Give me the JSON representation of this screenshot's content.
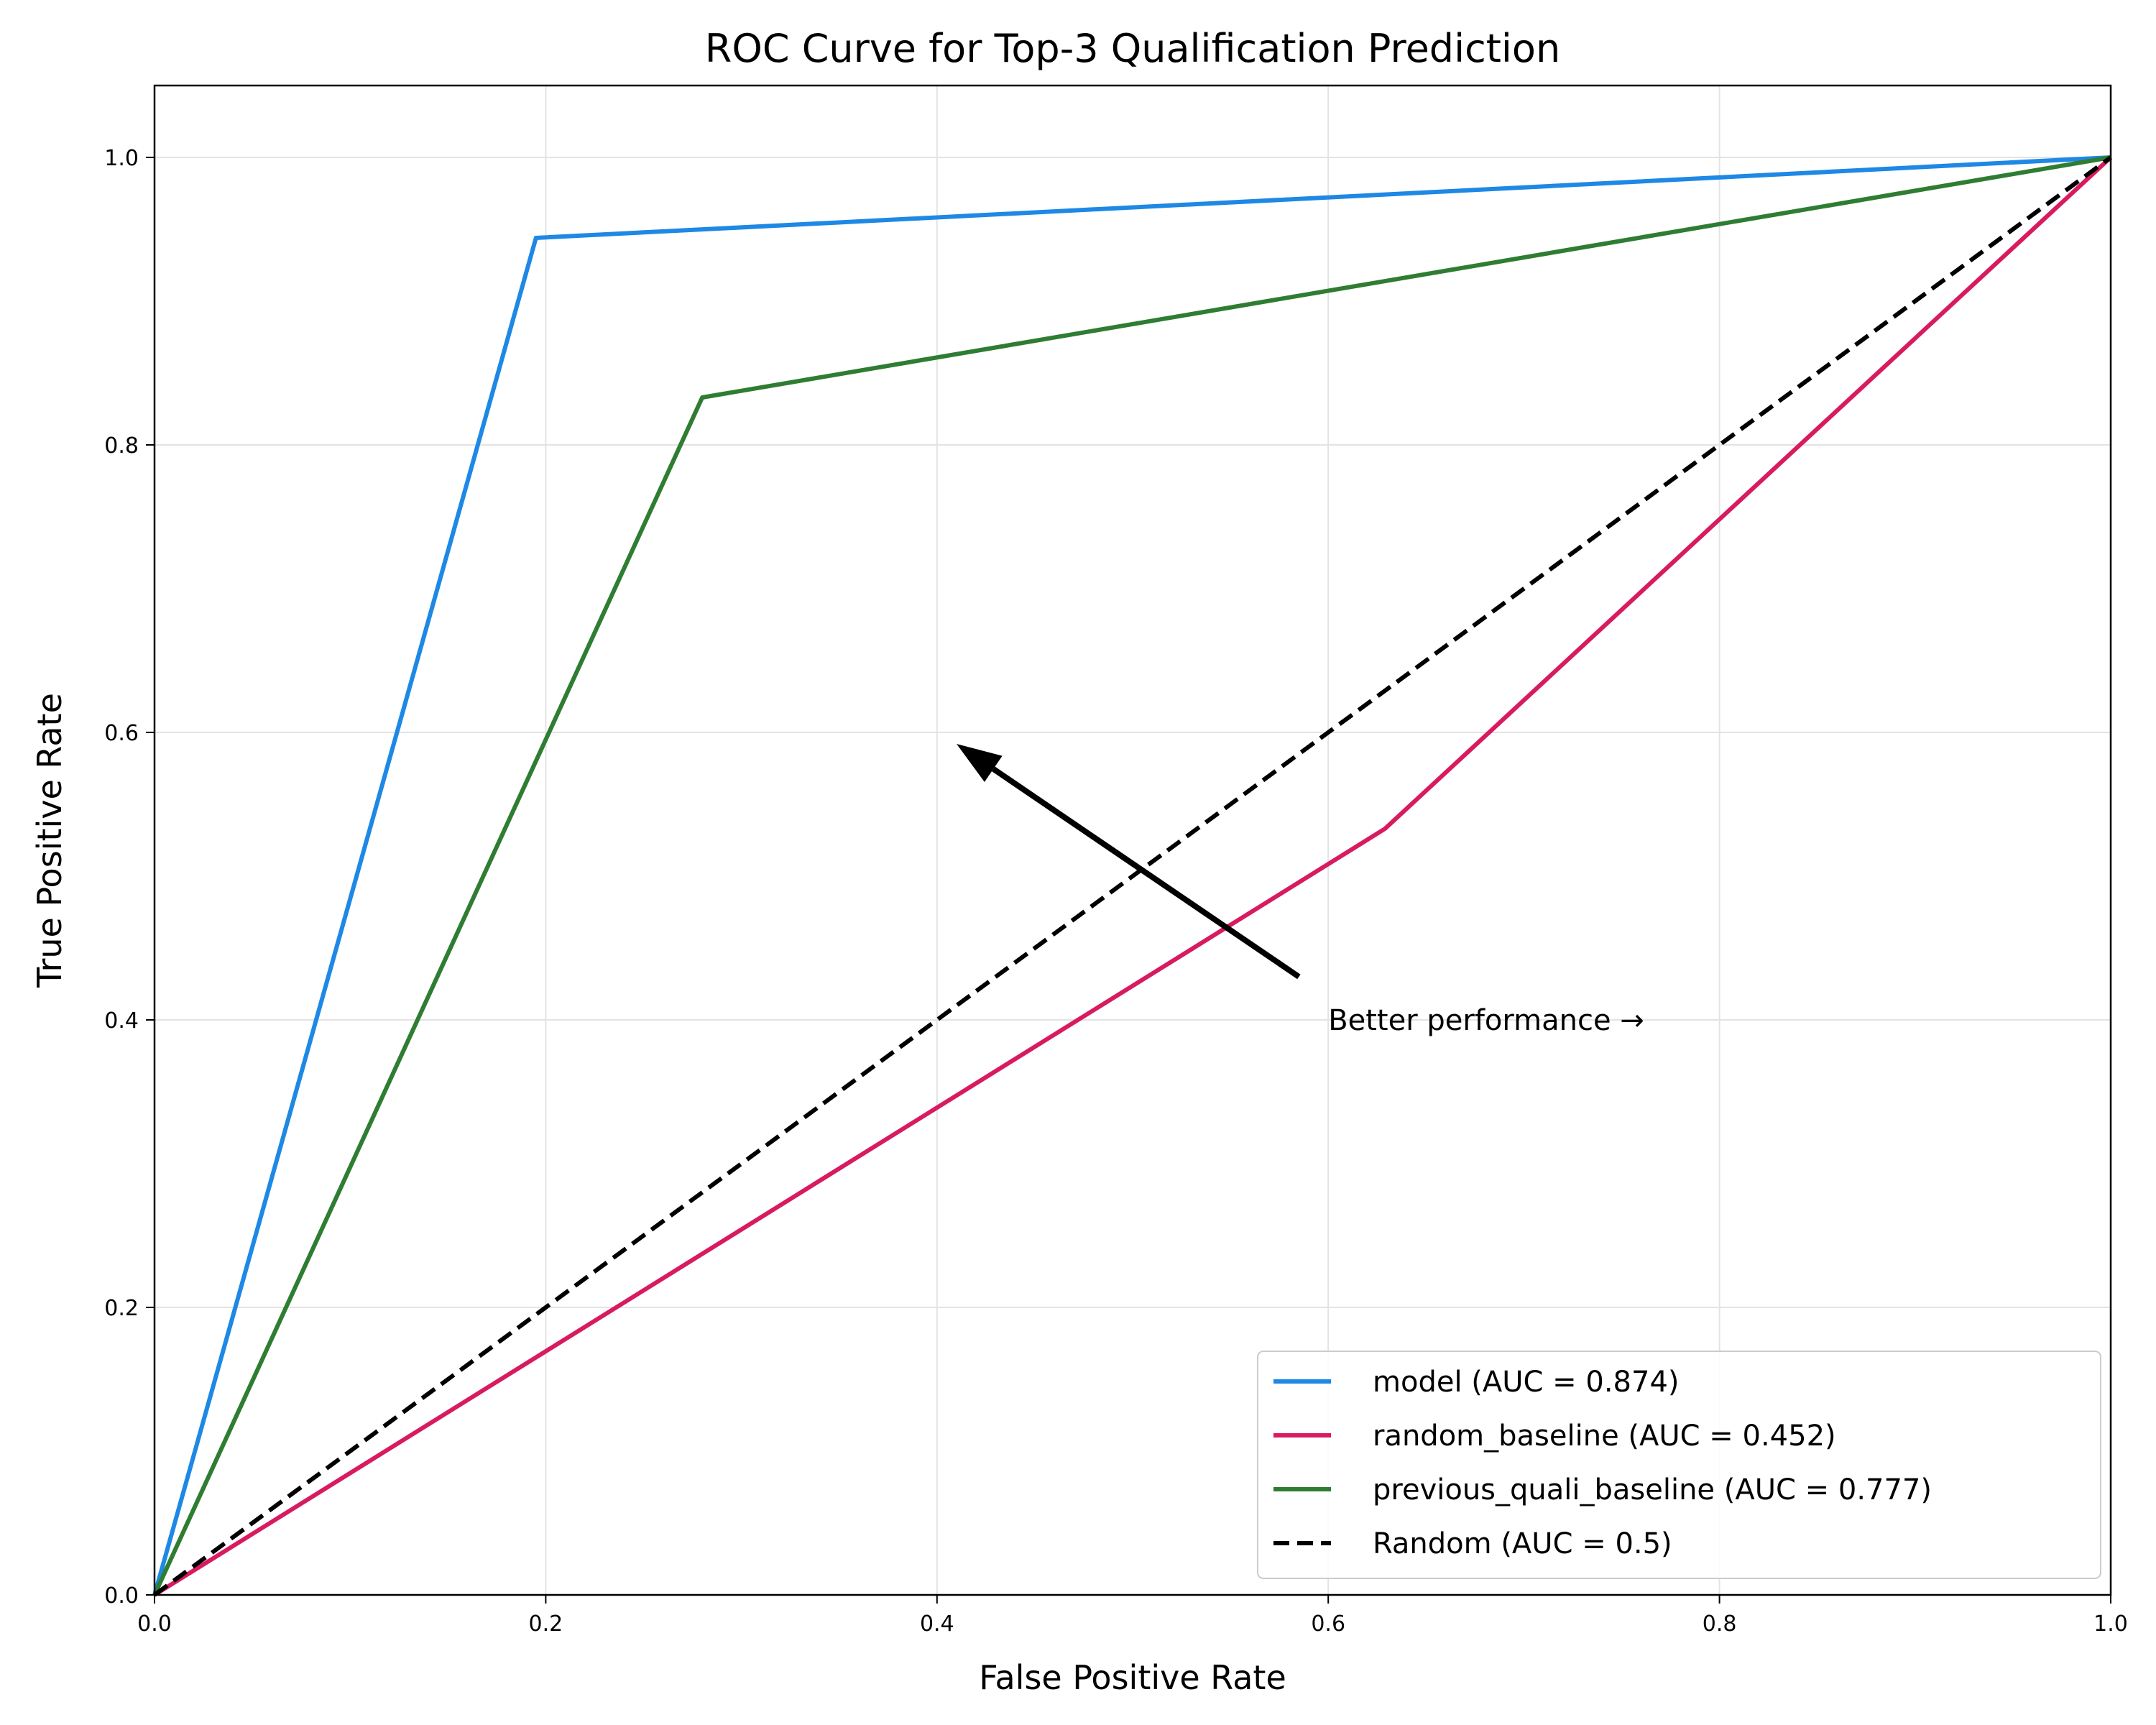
{
  "chart_data": {
    "type": "line",
    "title": "ROC Curve for Top-3 Qualification Prediction",
    "xlabel": "False Positive Rate",
    "ylabel": "True Positive Rate",
    "xlim": [
      0.0,
      1.0
    ],
    "ylim": [
      0.0,
      1.05
    ],
    "x_ticks": [
      0.0,
      0.2,
      0.4,
      0.6,
      0.8,
      1.0
    ],
    "y_ticks": [
      0.0,
      0.2,
      0.4,
      0.6,
      0.8,
      1.0
    ],
    "x_tick_labels": [
      "0.0",
      "0.2",
      "0.4",
      "0.6",
      "0.8",
      "1.0"
    ],
    "y_tick_labels": [
      "0.0",
      "0.2",
      "0.4",
      "0.6",
      "0.8",
      "1.0"
    ],
    "grid": true,
    "legend_position": "bottom-right",
    "series": [
      {
        "name": "model (AUC = 0.874)",
        "color": "#1e88e5",
        "dash": "solid",
        "x": [
          0.0,
          0.195,
          1.0
        ],
        "y": [
          0.0,
          0.944,
          1.0
        ]
      },
      {
        "name": "random_baseline (AUC = 0.452)",
        "color": "#d81b60",
        "dash": "solid",
        "x": [
          0.0,
          0.629,
          1.0
        ],
        "y": [
          0.0,
          0.533,
          1.0
        ]
      },
      {
        "name": "previous_quali_baseline (AUC = 0.777)",
        "color": "#2e7d32",
        "dash": "solid",
        "x": [
          0.0,
          0.28,
          1.0
        ],
        "y": [
          0.0,
          0.833,
          1.0
        ]
      },
      {
        "name": "Random (AUC = 0.5)",
        "color": "#000000",
        "dash": "dashed",
        "x": [
          0.0,
          1.0
        ],
        "y": [
          0.0,
          1.0
        ]
      }
    ],
    "annotation": {
      "text": "Better performance →",
      "text_x": 0.6,
      "text_y": 0.4,
      "arrow_from": [
        0.585,
        0.43
      ],
      "arrow_to": [
        0.41,
        0.592
      ]
    }
  }
}
